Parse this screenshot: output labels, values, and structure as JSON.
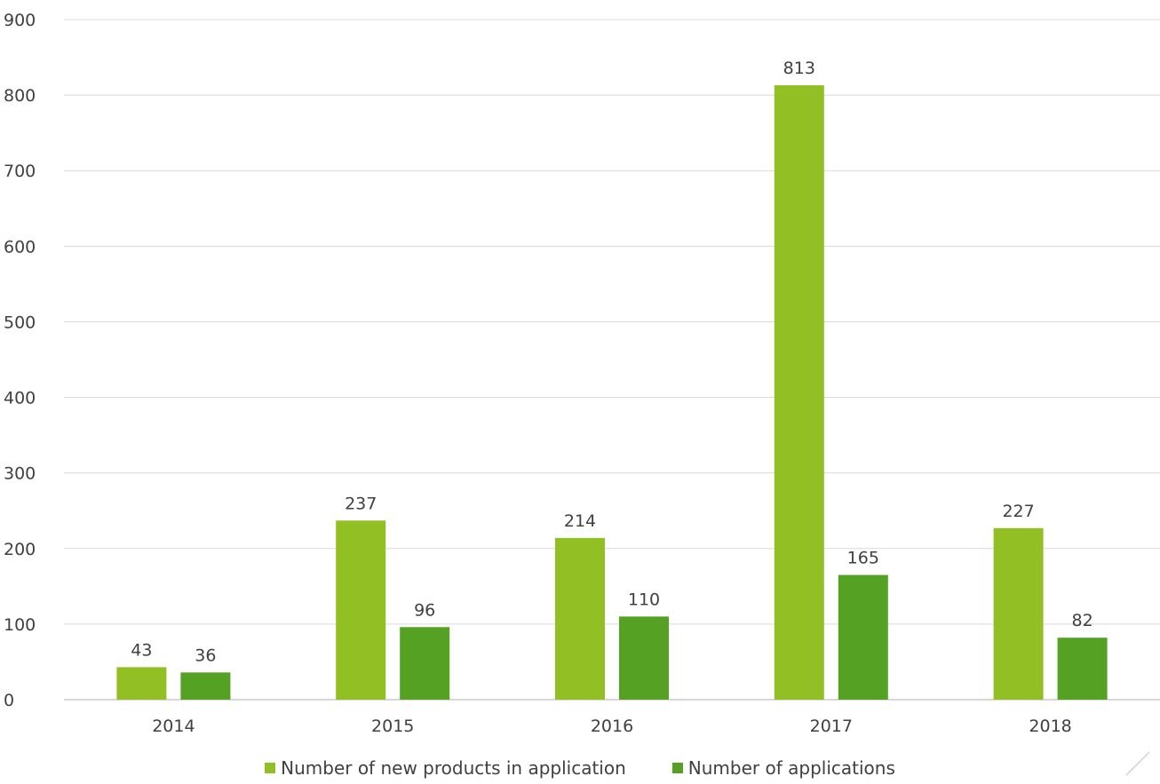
{
  "chart_data": {
    "type": "bar",
    "categories": [
      "2014",
      "2015",
      "2016",
      "2017",
      "2018"
    ],
    "series": [
      {
        "name": "Number of new products in application",
        "values": [
          43,
          237,
          214,
          813,
          227
        ],
        "color": "#92c024"
      },
      {
        "name": "Number of applications",
        "values": [
          36,
          96,
          110,
          165,
          82
        ],
        "color": "#55a124"
      }
    ],
    "y_ticks": [
      "0",
      "100",
      "200",
      "300",
      "400",
      "500",
      "600",
      "700",
      "800",
      "900"
    ],
    "ylim": [
      0,
      900
    ],
    "grid": true,
    "legend_position": "bottom-center",
    "title": "",
    "xlabel": "",
    "ylabel": ""
  }
}
